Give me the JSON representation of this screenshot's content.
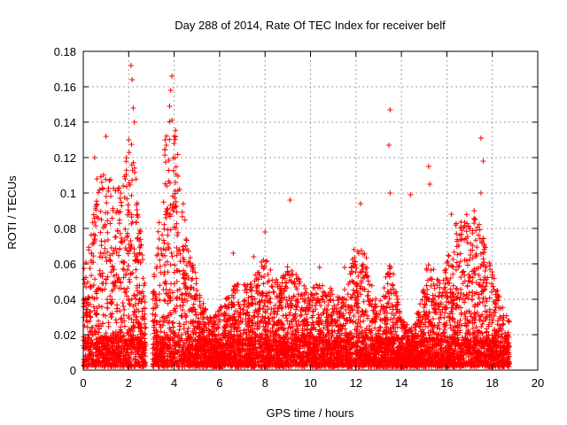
{
  "chart_data": {
    "type": "scatter",
    "title": "Day 288 of 2014, Rate Of TEC Index for receiver belf",
    "xlabel": "GPS time / hours",
    "ylabel": "ROTI / TECUs",
    "xlim": [
      0,
      20
    ],
    "ylim": [
      0,
      0.18
    ],
    "xticks": [
      0,
      2,
      4,
      6,
      8,
      10,
      12,
      14,
      16,
      18,
      20
    ],
    "yticks": [
      0,
      0.02,
      0.04,
      0.06,
      0.08,
      0.1,
      0.12,
      0.14,
      0.16,
      0.18
    ],
    "grid": true,
    "series": [
      {
        "name": "ROTI",
        "color": "#ff0000",
        "marker": "plus",
        "points": [
          {
            "x": 0.5,
            "y": 0.12
          },
          {
            "x": 1.0,
            "y": 0.132
          },
          {
            "x": 2.1,
            "y": 0.172
          },
          {
            "x": 2.15,
            "y": 0.164
          },
          {
            "x": 2.2,
            "y": 0.148
          },
          {
            "x": 2.25,
            "y": 0.14
          },
          {
            "x": 2.0,
            "y": 0.13
          },
          {
            "x": 1.9,
            "y": 0.12
          },
          {
            "x": 3.9,
            "y": 0.166
          },
          {
            "x": 3.85,
            "y": 0.158
          },
          {
            "x": 3.8,
            "y": 0.149
          },
          {
            "x": 4.0,
            "y": 0.128
          },
          {
            "x": 3.6,
            "y": 0.13
          },
          {
            "x": 1.15,
            "y": 0.107
          },
          {
            "x": 0.6,
            "y": 0.108
          },
          {
            "x": 9.1,
            "y": 0.096
          },
          {
            "x": 12.2,
            "y": 0.094
          },
          {
            "x": 13.5,
            "y": 0.147
          },
          {
            "x": 13.45,
            "y": 0.127
          },
          {
            "x": 13.5,
            "y": 0.1
          },
          {
            "x": 14.4,
            "y": 0.099
          },
          {
            "x": 15.2,
            "y": 0.115
          },
          {
            "x": 15.25,
            "y": 0.105
          },
          {
            "x": 17.5,
            "y": 0.131
          },
          {
            "x": 17.6,
            "y": 0.118
          },
          {
            "x": 17.5,
            "y": 0.1
          },
          {
            "x": 17.2,
            "y": 0.09
          },
          {
            "x": 16.2,
            "y": 0.088
          },
          {
            "x": 8.0,
            "y": 0.078
          },
          {
            "x": 6.6,
            "y": 0.066
          },
          {
            "x": 7.5,
            "y": 0.064
          },
          {
            "x": 10.4,
            "y": 0.058
          },
          {
            "x": 11.5,
            "y": 0.058
          }
        ]
      }
    ]
  }
}
